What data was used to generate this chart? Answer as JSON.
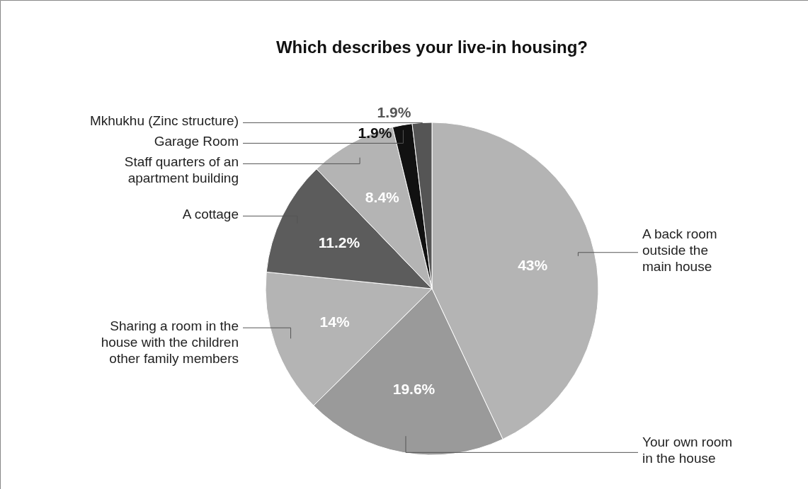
{
  "chart_data": {
    "type": "pie",
    "title": "Which describes your live-in housing?",
    "categories": [
      "A back room outside the main house",
      "Your own room in the house",
      "Sharing a room in the house with the children other family members",
      "A cottage",
      "Staff quarters of an apartment building",
      "Garage Room",
      "Mkhukhu (Zinc structure)"
    ],
    "values": [
      43,
      19.6,
      14,
      11.2,
      8.4,
      1.9,
      1.9
    ],
    "colors": [
      "#b4b4b4",
      "#9a9a9a",
      "#b4b4b4",
      "#5c5c5c",
      "#b4b4b4",
      "#111111",
      "#555555"
    ],
    "value_labels": [
      "43%",
      "19.6%",
      "14%",
      "11.2%",
      "8.4%",
      "1.9%",
      "1.9%"
    ]
  }
}
